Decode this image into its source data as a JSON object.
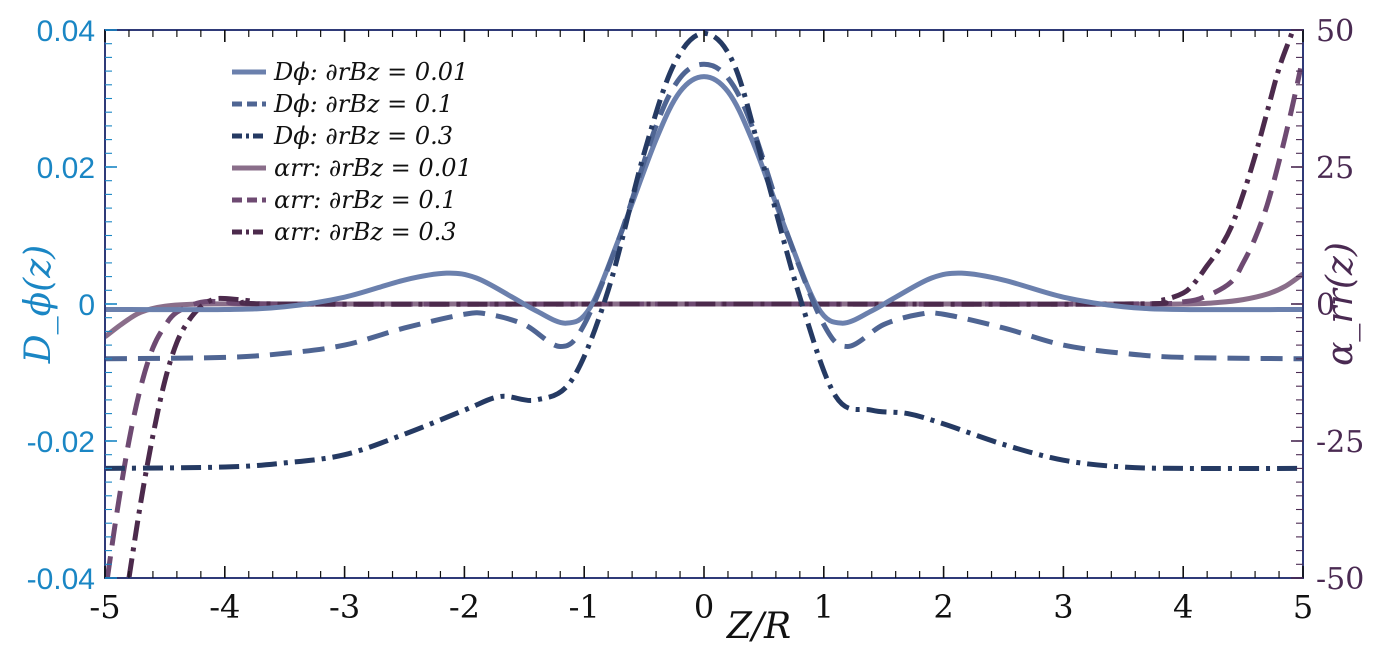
{
  "chart_data": {
    "type": "line",
    "xlabel": "Z/R",
    "ylabel_left": "D_ϕ(z)",
    "ylabel_right": "α_rr(z)",
    "xlim": [
      -5,
      5
    ],
    "ylim_left": [
      -0.04,
      0.04
    ],
    "ylim_right": [
      -50,
      50
    ],
    "x_ticks": [
      "-5",
      "-4",
      "-3",
      "-2",
      "-1",
      "0",
      "1",
      "2",
      "3",
      "4",
      "5"
    ],
    "y_left_ticks": [
      "-0.04",
      "-0.02",
      "0",
      "0.02",
      "0.04"
    ],
    "y_right_ticks": [
      "-50",
      "-25",
      "0",
      "25",
      "50"
    ],
    "grid": false,
    "legend_position": "top-left",
    "colors": {
      "left_axis": "#1a86c4",
      "right_axis": "#4a2a52",
      "frame": "#2f3a78"
    },
    "series": [
      {
        "name": "Dϕ:  ∂rBz = 0.01",
        "axis": "left",
        "color": "#6b80ad",
        "dash": "solid",
        "x": [
          -5,
          -4,
          -3.5,
          -3,
          -2.5,
          -2.15,
          -1.9,
          -1.6,
          -1.4,
          -1.15,
          -0.95,
          -0.7,
          -0.4,
          -0.2,
          0,
          0.2,
          0.4,
          0.7,
          0.95,
          1.15,
          1.4,
          1.6,
          1.9,
          2.15,
          2.5,
          3,
          3.5,
          4,
          5
        ],
        "y": [
          -0.0008,
          -0.0008,
          -0.0004,
          0.001,
          0.0035,
          0.0045,
          0.0038,
          0.001,
          -0.001,
          -0.0028,
          -0.0005,
          0.01,
          0.024,
          0.031,
          0.0332,
          0.031,
          0.024,
          0.01,
          -0.0005,
          -0.0028,
          -0.001,
          0.001,
          0.0038,
          0.0045,
          0.0035,
          0.001,
          -0.0004,
          -0.0008,
          -0.0008
        ]
      },
      {
        "name": "Dϕ:  ∂rBz = 0.1",
        "axis": "left",
        "color": "#4f6593",
        "dash": "dashed",
        "x": [
          -5,
          -4,
          -3.5,
          -3,
          -2.5,
          -2,
          -1.8,
          -1.5,
          -1.2,
          -1,
          -0.7,
          -0.4,
          -0.2,
          0,
          0.2,
          0.4,
          0.7,
          1,
          1.2,
          1.5,
          1.8,
          2,
          2.5,
          3,
          3.5,
          4,
          5
        ],
        "y": [
          -0.008,
          -0.0078,
          -0.0072,
          -0.006,
          -0.0035,
          -0.0015,
          -0.0015,
          -0.003,
          -0.0062,
          -0.003,
          0.01,
          0.026,
          0.033,
          0.035,
          0.033,
          0.026,
          0.01,
          -0.003,
          -0.0062,
          -0.003,
          -0.0015,
          -0.0015,
          -0.0035,
          -0.006,
          -0.0072,
          -0.0078,
          -0.008
        ]
      },
      {
        "name": "Dϕ:  ∂rBz = 0.3",
        "axis": "left",
        "color": "#253a63",
        "dash": "dashdot",
        "x": [
          -5,
          -4,
          -3.5,
          -3,
          -2.5,
          -2,
          -1.7,
          -1.4,
          -1.1,
          -0.8,
          -0.5,
          -0.25,
          0,
          0.25,
          0.5,
          0.8,
          1.1,
          1.4,
          1.7,
          2,
          2.5,
          3,
          3.5,
          4,
          5
        ],
        "y": [
          -0.024,
          -0.0238,
          -0.0232,
          -0.022,
          -0.019,
          -0.0155,
          -0.0135,
          -0.014,
          -0.011,
          0.002,
          0.022,
          0.035,
          0.0395,
          0.035,
          0.02,
          0.001,
          -0.0135,
          -0.0155,
          -0.016,
          -0.0175,
          -0.0205,
          -0.0228,
          -0.0238,
          -0.024,
          -0.024
        ]
      },
      {
        "name": "αrr:  ∂rBz = 0.01",
        "axis": "right",
        "color": "#8a6e8a",
        "dash": "solid",
        "x": [
          -5,
          -4.85,
          -4.7,
          -4.5,
          -4.2,
          -3.8,
          -3,
          0,
          3,
          4,
          4.3,
          4.5,
          4.7,
          4.85,
          5
        ],
        "y": [
          -6,
          -3.5,
          -1.5,
          -0.4,
          0,
          0,
          0,
          0,
          0,
          0,
          0.3,
          0.8,
          1.8,
          3.2,
          5.5
        ]
      },
      {
        "name": "αrr:  ∂rBz = 0.1",
        "axis": "right",
        "color": "#6e4a72",
        "dash": "dashed",
        "x": [
          -4.98,
          -4.9,
          -4.8,
          -4.7,
          -4.6,
          -4.5,
          -4.4,
          -4.2,
          -4,
          -3.5,
          0,
          3.5,
          4,
          4.2,
          4.4,
          4.5,
          4.6,
          4.7,
          4.8,
          4.9,
          4.98
        ],
        "y": [
          -50,
          -38,
          -25,
          -15,
          -8,
          -4,
          -1.5,
          0.3,
          0.4,
          0,
          0,
          0,
          0.4,
          1.5,
          4,
          7.5,
          12,
          18,
          26,
          35,
          43
        ]
      },
      {
        "name": "αrr:  ∂rBz = 0.3",
        "axis": "right",
        "color": "#4c2a4c",
        "dash": "dashdot",
        "x": [
          -4.8,
          -4.7,
          -4.6,
          -4.5,
          -4.4,
          -4.3,
          -4.2,
          -4.1,
          -4,
          -3.8,
          -3.5,
          0,
          3.5,
          3.8,
          4,
          4.1,
          4.2,
          4.3,
          4.4,
          4.5,
          4.6,
          4.7,
          4.8,
          4.9,
          4.95
        ],
        "y": [
          -50,
          -36,
          -24,
          -14,
          -7,
          -3,
          -0.5,
          0.8,
          1,
          0.6,
          0,
          0,
          0,
          0.6,
          2,
          4,
          7,
          10,
          14,
          20,
          27,
          35,
          43,
          49,
          52
        ]
      }
    ]
  }
}
